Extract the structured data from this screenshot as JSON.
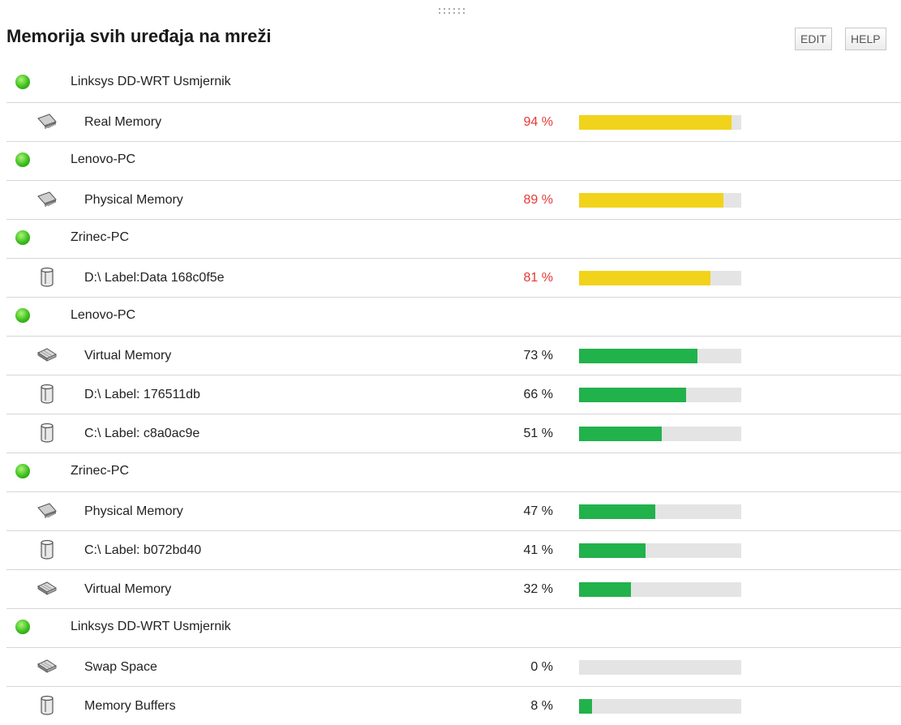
{
  "title": "Memorija svih uređaja na mreži",
  "buttons": [
    "EDIT",
    "HELP"
  ],
  "range": [
    0,
    100
  ],
  "groups": [
    {
      "device": "Linksys DD-WRT Usmjernik",
      "items": [
        {
          "label": "Real Memory",
          "value": 94,
          "value_label": "94 %",
          "color": "#f2d31c",
          "text_color": "#e53935"
        }
      ]
    },
    {
      "device": "Lenovo-PC",
      "items": [
        {
          "label": "Physical Memory",
          "value": 89,
          "value_label": "89 %",
          "color": "#f2d31c",
          "text_color": "#e53935"
        }
      ]
    },
    {
      "device": "Zrinec-PC",
      "items": [
        {
          "label": "D:\\ Label:Data 168c0f5e",
          "value": 81,
          "value_label": "81 %",
          "color": "#f2d31c",
          "text_color": "#e53935"
        }
      ]
    },
    {
      "device": "Lenovo-PC",
      "items": [
        {
          "label": "Virtual Memory",
          "value": 73,
          "value_label": "73 %",
          "color": "#22b24c",
          "text_color": "#222222"
        },
        {
          "label": "D:\\ Label: 176511db",
          "value": 66,
          "value_label": "66 %",
          "color": "#22b24c",
          "text_color": "#222222"
        },
        {
          "label": "C:\\ Label: c8a0ac9e",
          "value": 51,
          "value_label": "51 %",
          "color": "#22b24c",
          "text_color": "#222222"
        }
      ]
    },
    {
      "device": "Zrinec-PC",
      "items": [
        {
          "label": "Physical Memory",
          "value": 47,
          "value_label": "47 %",
          "color": "#22b24c",
          "text_color": "#222222"
        },
        {
          "label": "C:\\ Label: b072bd40",
          "value": 41,
          "value_label": "41 %",
          "color": "#22b24c",
          "text_color": "#222222"
        },
        {
          "label": "Virtual Memory",
          "value": 32,
          "value_label": "32 %",
          "color": "#22b24c",
          "text_color": "#222222"
        }
      ]
    },
    {
      "device": "Linksys DD-WRT Usmjernik",
      "items": [
        {
          "label": "Swap Space",
          "value": 0,
          "value_label": "0 %",
          "color": "#22b24c",
          "text_color": "#222222"
        },
        {
          "label": "Memory Buffers",
          "value": 8,
          "value_label": "8 %",
          "color": "#22b24c",
          "text_color": "#222222"
        }
      ]
    }
  ]
}
